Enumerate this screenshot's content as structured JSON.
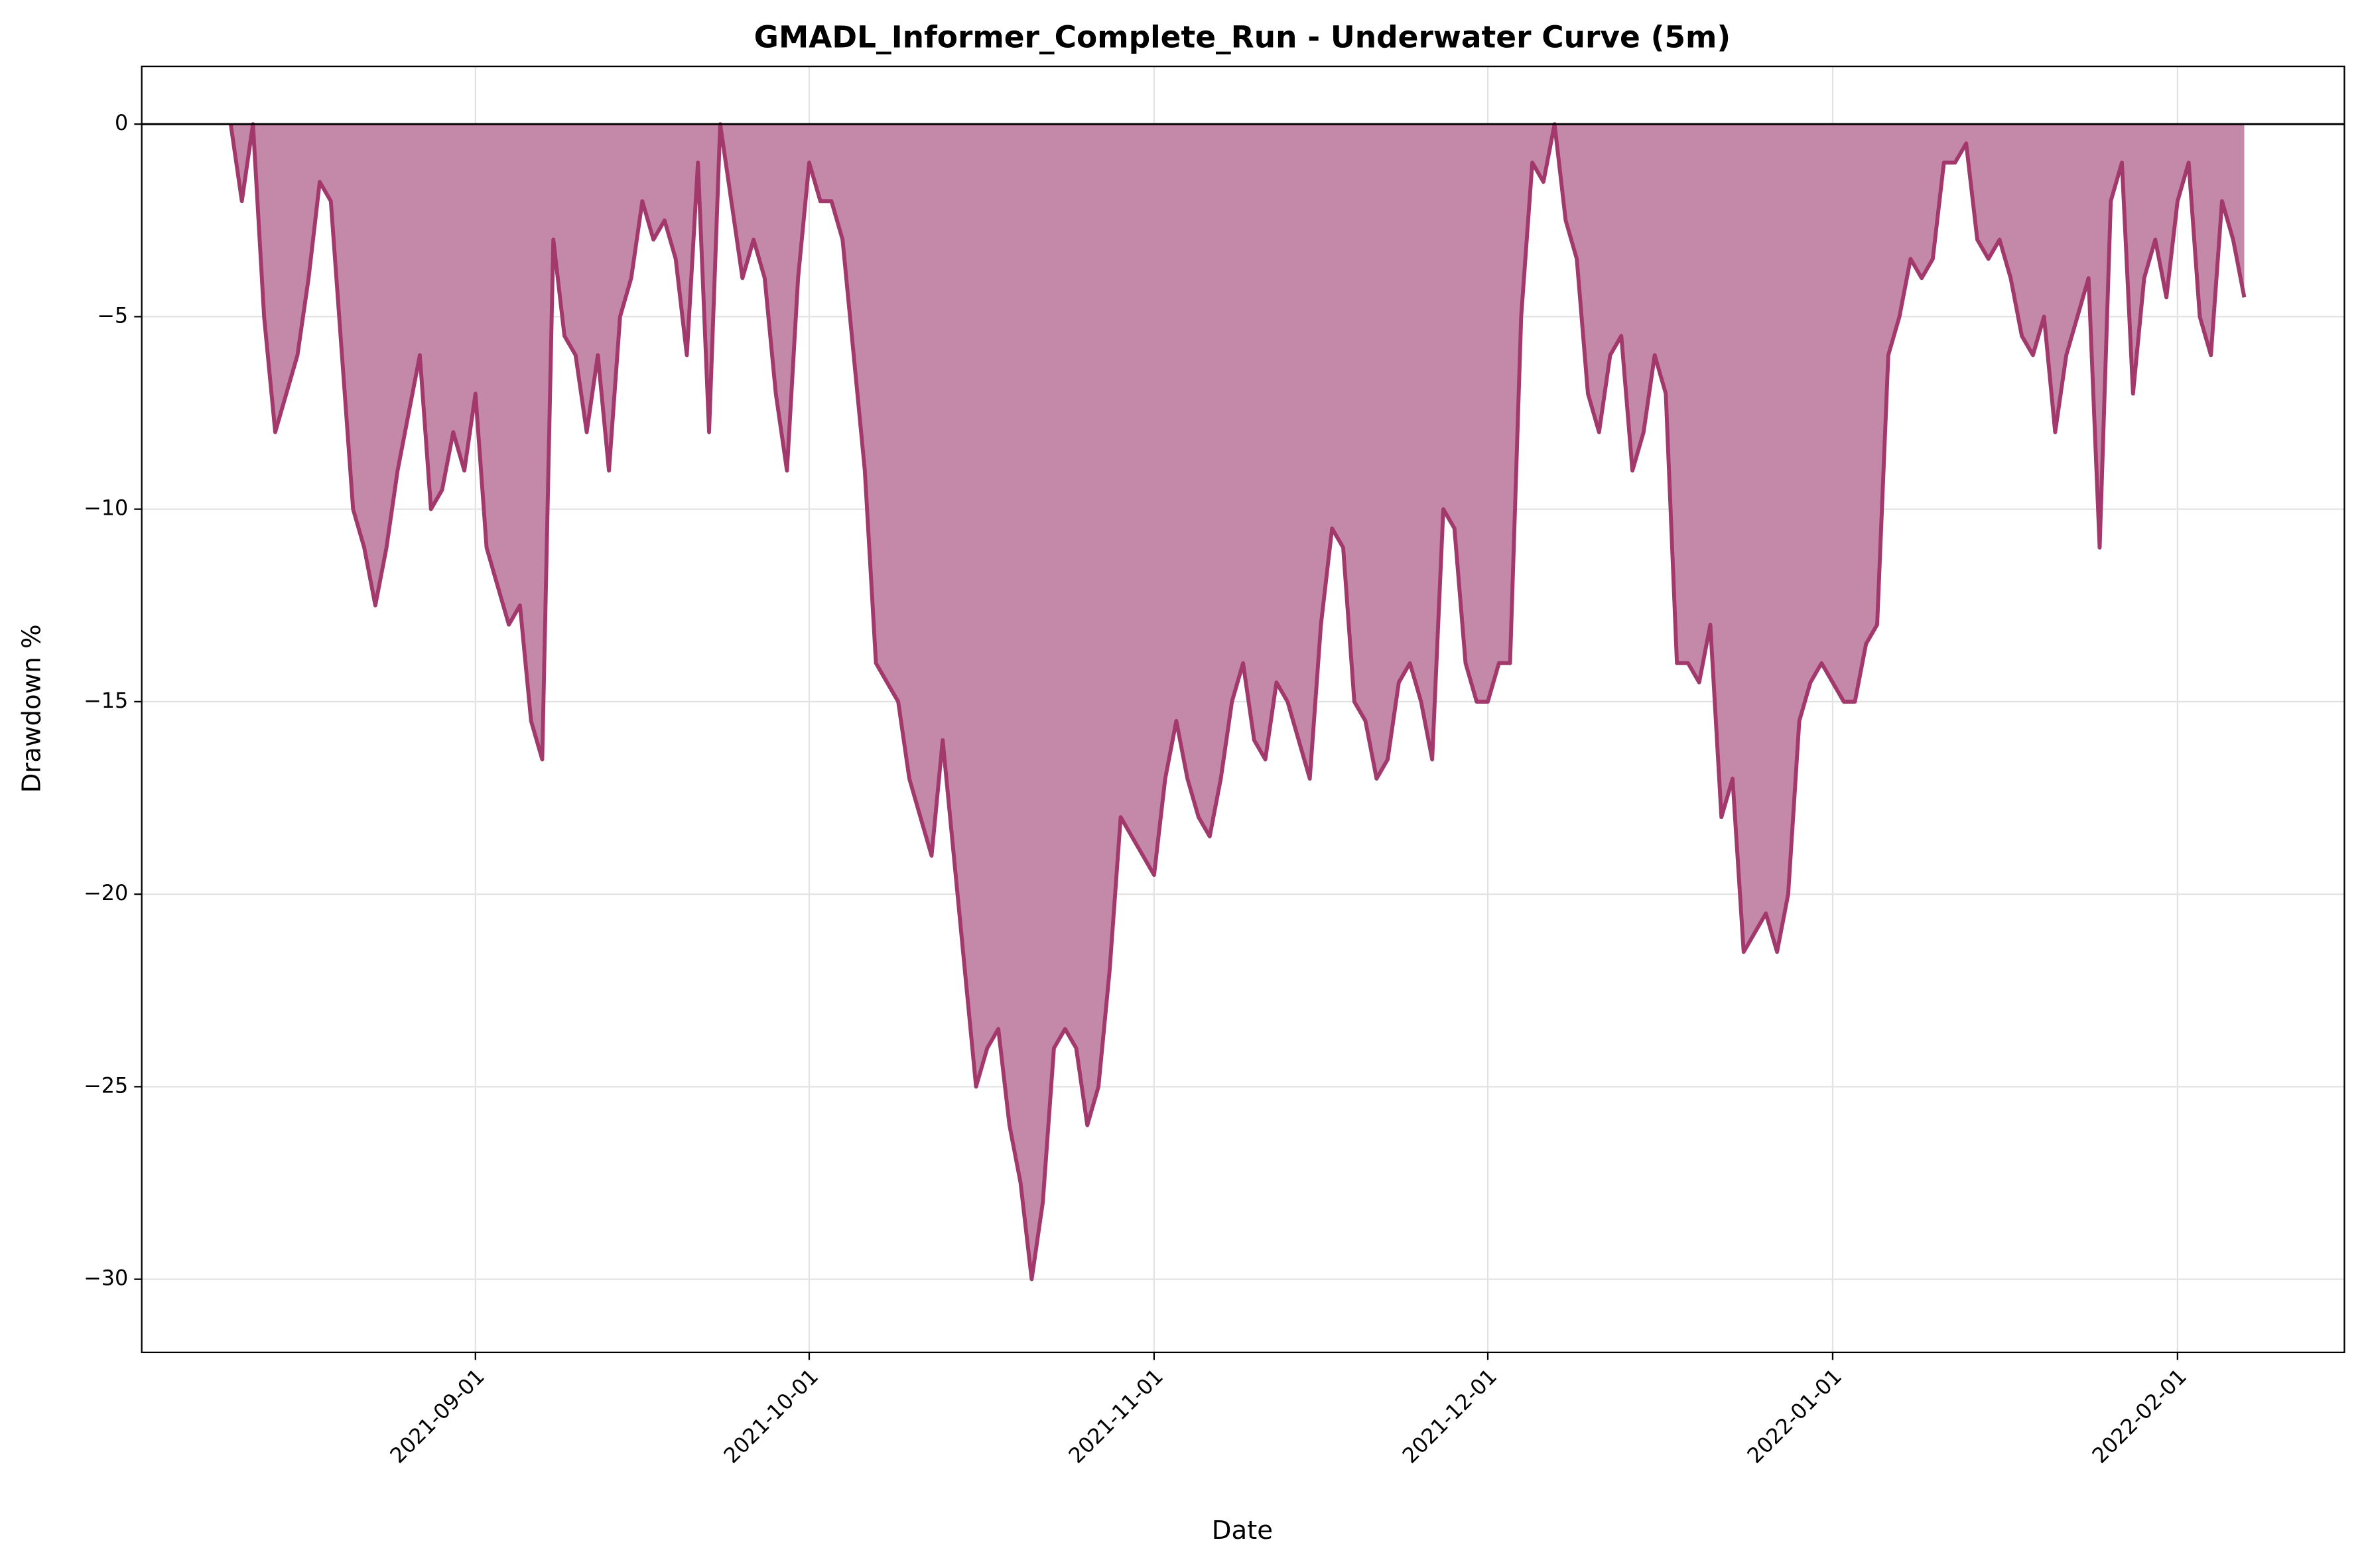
{
  "chart_data": {
    "type": "area",
    "title": "GMADL_Informer_Complete_Run - Underwater Curve (5m)",
    "x_label": "Date",
    "y_label": "Drawdown %",
    "xlim": [
      "2021-08-02",
      "2022-02-16"
    ],
    "xticks": [
      "2021-09-01",
      "2021-10-01",
      "2021-11-01",
      "2021-12-01",
      "2022-01-01",
      "2022-02-01"
    ],
    "ylim": [
      -31.9,
      1.5
    ],
    "yticks": [
      {
        "value": -30,
        "label": "−30"
      },
      {
        "value": -25,
        "label": "−25"
      },
      {
        "value": -20,
        "label": "−20"
      },
      {
        "value": -15,
        "label": "−15"
      },
      {
        "value": -10,
        "label": "−10"
      },
      {
        "value": -5,
        "label": "−5"
      },
      0
    ],
    "grid": true,
    "series": [
      {
        "name": "Drawdown",
        "color": "#a3386d",
        "fill": "#c489a8",
        "x": [
          "2021-08-10",
          "2021-08-11",
          "2021-08-12",
          "2021-08-13",
          "2021-08-14",
          "2021-08-15",
          "2021-08-16",
          "2021-08-17",
          "2021-08-18",
          "2021-08-19",
          "2021-08-20",
          "2021-08-21",
          "2021-08-22",
          "2021-08-23",
          "2021-08-24",
          "2021-08-25",
          "2021-08-26",
          "2021-08-27",
          "2021-08-28",
          "2021-08-29",
          "2021-08-30",
          "2021-08-31",
          "2021-09-01",
          "2021-09-02",
          "2021-09-03",
          "2021-09-04",
          "2021-09-05",
          "2021-09-06",
          "2021-09-07",
          "2021-09-08",
          "2021-09-09",
          "2021-09-10",
          "2021-09-11",
          "2021-09-12",
          "2021-09-13",
          "2021-09-14",
          "2021-09-15",
          "2021-09-16",
          "2021-09-17",
          "2021-09-18",
          "2021-09-19",
          "2021-09-20",
          "2021-09-21",
          "2021-09-22",
          "2021-09-23",
          "2021-09-24",
          "2021-09-25",
          "2021-09-26",
          "2021-09-27",
          "2021-09-28",
          "2021-09-29",
          "2021-09-30",
          "2021-10-01",
          "2021-10-02",
          "2021-10-03",
          "2021-10-04",
          "2021-10-05",
          "2021-10-06",
          "2021-10-07",
          "2021-10-08",
          "2021-10-09",
          "2021-10-10",
          "2021-10-11",
          "2021-10-12",
          "2021-10-13",
          "2021-10-14",
          "2021-10-15",
          "2021-10-16",
          "2021-10-17",
          "2021-10-18",
          "2021-10-19",
          "2021-10-20",
          "2021-10-21",
          "2021-10-22",
          "2021-10-23",
          "2021-10-24",
          "2021-10-25",
          "2021-10-26",
          "2021-10-27",
          "2021-10-28",
          "2021-10-29",
          "2021-10-30",
          "2021-10-31",
          "2021-11-01",
          "2021-11-02",
          "2021-11-03",
          "2021-11-04",
          "2021-11-05",
          "2021-11-06",
          "2021-11-07",
          "2021-11-08",
          "2021-11-09",
          "2021-11-10",
          "2021-11-11",
          "2021-11-12",
          "2021-11-13",
          "2021-11-14",
          "2021-11-15",
          "2021-11-16",
          "2021-11-17",
          "2021-11-18",
          "2021-11-19",
          "2021-11-20",
          "2021-11-21",
          "2021-11-22",
          "2021-11-23",
          "2021-11-24",
          "2021-11-25",
          "2021-11-26",
          "2021-11-27",
          "2021-11-28",
          "2021-11-29",
          "2021-11-30",
          "2021-12-01",
          "2021-12-02",
          "2021-12-03",
          "2021-12-04",
          "2021-12-05",
          "2021-12-06",
          "2021-12-07",
          "2021-12-08",
          "2021-12-09",
          "2021-12-10",
          "2021-12-11",
          "2021-12-12",
          "2021-12-13",
          "2021-12-14",
          "2021-12-15",
          "2021-12-16",
          "2021-12-17",
          "2021-12-18",
          "2021-12-19",
          "2021-12-20",
          "2021-12-21",
          "2021-12-22",
          "2021-12-23",
          "2021-12-24",
          "2021-12-25",
          "2021-12-26",
          "2021-12-27",
          "2021-12-28",
          "2021-12-29",
          "2021-12-30",
          "2021-12-31",
          "2022-01-01",
          "2022-01-02",
          "2022-01-03",
          "2022-01-04",
          "2022-01-05",
          "2022-01-06",
          "2022-01-07",
          "2022-01-08",
          "2022-01-09",
          "2022-01-10",
          "2022-01-11",
          "2022-01-12",
          "2022-01-13",
          "2022-01-14",
          "2022-01-15",
          "2022-01-16",
          "2022-01-17",
          "2022-01-18",
          "2022-01-19",
          "2022-01-20",
          "2022-01-21",
          "2022-01-22",
          "2022-01-23",
          "2022-01-24",
          "2022-01-25",
          "2022-01-26",
          "2022-01-27",
          "2022-01-28",
          "2022-01-29",
          "2022-01-30",
          "2022-01-31",
          "2022-02-01",
          "2022-02-02",
          "2022-02-03",
          "2022-02-04",
          "2022-02-05",
          "2022-02-06",
          "2022-02-07"
        ],
        "values": [
          0,
          -2,
          0,
          -5,
          -8,
          -7,
          -6,
          -4,
          -1.5,
          -2,
          -6,
          -10,
          -11,
          -12.5,
          -11,
          -9,
          -7.5,
          -6,
          -10,
          -9.5,
          -8,
          -9,
          -7,
          -11,
          -12,
          -13,
          -12.5,
          -15.5,
          -16.5,
          -3,
          -5.5,
          -6,
          -8,
          -6,
          -9,
          -5,
          -4,
          -2,
          -3,
          -2.5,
          -3.5,
          -6,
          -1,
          -8,
          0,
          -2,
          -4,
          -3,
          -4,
          -7,
          -9,
          -4,
          -1,
          -2,
          -2,
          -3,
          -6,
          -9,
          -14,
          -14.5,
          -15,
          -17,
          -18,
          -19,
          -16,
          -19,
          -22,
          -25,
          -24,
          -23.5,
          -26,
          -27.5,
          -30,
          -28,
          -24,
          -23.5,
          -24,
          -26,
          -25,
          -22,
          -18,
          -18.5,
          -19,
          -19.5,
          -17,
          -15.5,
          -17,
          -18,
          -18.5,
          -17,
          -15,
          -14,
          -16,
          -16.5,
          -14.5,
          -15,
          -16,
          -17,
          -13,
          -10.5,
          -11,
          -15,
          -15.5,
          -17,
          -16.5,
          -14.5,
          -14,
          -15,
          -16.5,
          -10,
          -10.5,
          -14,
          -15,
          -15,
          -14,
          -14,
          -5,
          -1,
          -1.5,
          0,
          -2.5,
          -3.5,
          -7,
          -8,
          -6,
          -5.5,
          -9,
          -8,
          -6,
          -7,
          -14,
          -14,
          -14.5,
          -13,
          -18,
          -17,
          -21.5,
          -21,
          -20.5,
          -21.5,
          -20,
          -15.5,
          -14.5,
          -14,
          -14.5,
          -15,
          -15,
          -13.5,
          -13,
          -6,
          -5,
          -3.5,
          -4,
          -3.5,
          -1,
          -1,
          -0.5,
          -3,
          -3.5,
          -3,
          -4,
          -5.5,
          -6,
          -5,
          -8,
          -6,
          -5,
          -4,
          -11,
          -2,
          -1,
          -7,
          -4,
          -3,
          -4.5,
          -2,
          -1,
          -5,
          -6,
          -2,
          -3,
          -4.5
        ]
      }
    ]
  }
}
